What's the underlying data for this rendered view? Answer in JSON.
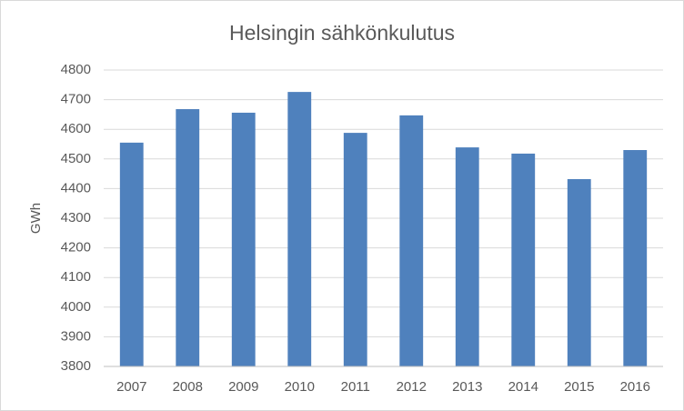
{
  "chart_data": {
    "type": "bar",
    "title": "Helsingin sähkönkulutus",
    "y_label": "GWh",
    "categories": [
      "2007",
      "2008",
      "2009",
      "2010",
      "2011",
      "2012",
      "2013",
      "2014",
      "2015",
      "2016"
    ],
    "values": [
      4555,
      4668,
      4656,
      4726,
      4588,
      4647,
      4539,
      4518,
      4432,
      4530
    ],
    "color": "#4f81bd",
    "ylim": [
      3800,
      4800
    ],
    "yticks": [
      3800,
      3900,
      4000,
      4100,
      4200,
      4300,
      4400,
      4500,
      4600,
      4700,
      4800
    ],
    "grid": true
  }
}
